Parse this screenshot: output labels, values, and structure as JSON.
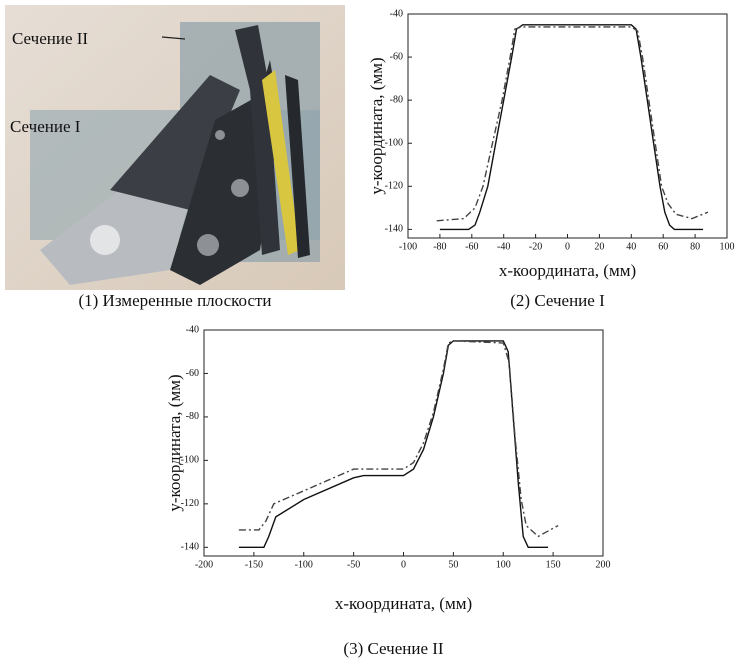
{
  "panel1": {
    "label_section2": "Сечение II",
    "label_section1": "Сечение I",
    "caption": "(1) Измеренные плоскости"
  },
  "chart_data": [
    {
      "type": "line",
      "xlabel": "x-координата, (мм)",
      "ylabel": "y-координата, (мм)",
      "caption": "(2) Сечение I",
      "xlim": [
        -100,
        100
      ],
      "xticks": [
        -100,
        -80,
        -60,
        -40,
        -20,
        0,
        20,
        40,
        60,
        80,
        100
      ],
      "ylim": [
        -144,
        -40
      ],
      "yticks": [
        -140,
        -120,
        -100,
        -80,
        -60,
        -40
      ],
      "series": [
        {
          "color": "#111111",
          "dash": "solid",
          "x": [
            -80,
            -62,
            -58,
            -55,
            -50,
            -45,
            -40,
            -35,
            -32,
            -28,
            40,
            43,
            46,
            50,
            54,
            58,
            61,
            64,
            67,
            85
          ],
          "values": [
            -140,
            -140,
            -138,
            -132,
            -120,
            -100,
            -80,
            -60,
            -47,
            -45,
            -45,
            -47,
            -60,
            -80,
            -100,
            -120,
            -132,
            -138,
            -140,
            -140
          ]
        },
        {
          "color": "#444444",
          "dash": "dashdot",
          "x": [
            -82,
            -65,
            -58,
            -53,
            -47,
            -41,
            -36,
            -33,
            -29,
            40,
            44,
            47,
            51,
            55,
            59,
            63,
            68,
            78,
            88
          ],
          "values": [
            -136,
            -135,
            -130,
            -120,
            -100,
            -80,
            -60,
            -47,
            -46,
            -46,
            -48,
            -60,
            -80,
            -100,
            -120,
            -128,
            -133,
            -135,
            -132
          ]
        }
      ]
    },
    {
      "type": "line",
      "xlabel": "x-координата, (мм)",
      "ylabel": "y-координата, (мм)",
      "caption": "(3) Сечение II",
      "xlim": [
        -200,
        200
      ],
      "xticks": [
        -200,
        -150,
        -100,
        -50,
        0,
        50,
        100,
        150,
        200
      ],
      "ylim": [
        -144,
        -40
      ],
      "yticks": [
        -140,
        -120,
        -100,
        -80,
        -60,
        -40
      ],
      "series": [
        {
          "color": "#111111",
          "dash": "solid",
          "x": [
            -165,
            -140,
            -135,
            -128,
            -100,
            -50,
            -40,
            0,
            10,
            20,
            30,
            40,
            45,
            50,
            100,
            105,
            110,
            115,
            120,
            125,
            145
          ],
          "values": [
            -140,
            -140,
            -135,
            -126,
            -118,
            -108,
            -107,
            -107,
            -104,
            -95,
            -80,
            -60,
            -47,
            -45,
            -45,
            -50,
            -80,
            -110,
            -135,
            -140,
            -140
          ]
        },
        {
          "color": "#444444",
          "dash": "dashdot",
          "x": [
            -165,
            -145,
            -138,
            -130,
            -100,
            -50,
            0,
            10,
            20,
            30,
            40,
            45,
            50,
            100,
            106,
            112,
            118,
            123,
            135,
            155
          ],
          "values": [
            -132,
            -132,
            -128,
            -120,
            -114,
            -104,
            -104,
            -101,
            -92,
            -78,
            -58,
            -46,
            -45,
            -46,
            -55,
            -90,
            -118,
            -130,
            -135,
            -130
          ]
        }
      ]
    }
  ]
}
